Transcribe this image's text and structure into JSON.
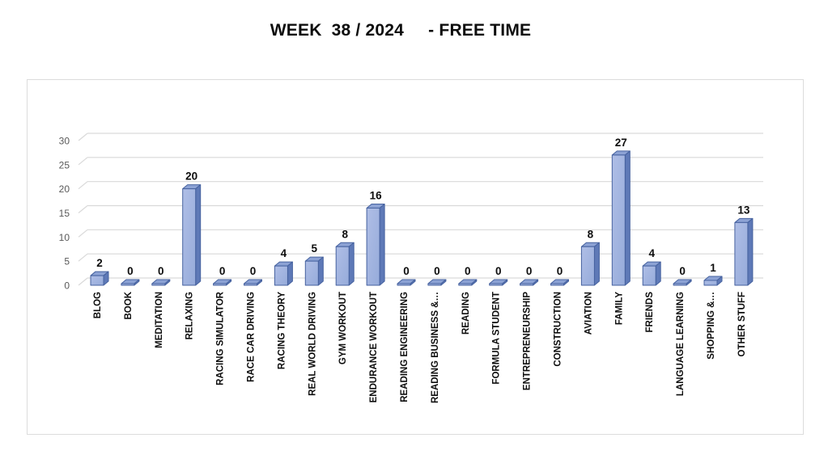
{
  "title": "WEEK  38 / 2024     - FREE TIME",
  "chart_data": {
    "type": "bar",
    "style": "3d-column",
    "title": "WEEK  38 / 2024     - FREE TIME",
    "xlabel": "",
    "ylabel": "",
    "ylim": [
      0,
      30
    ],
    "yticks": [
      0,
      5,
      10,
      15,
      20,
      25,
      30
    ],
    "grid": true,
    "legend": false,
    "categories": [
      "BLOG",
      "BOOK",
      "MEDITATION",
      "RELAXING",
      "RACING SIMULATOR",
      "RACE CAR DRIVING",
      "RACING THEORY",
      "REAL WORLD DRIVING",
      "GYM WORKOUT",
      "ENDURANCE WORKOUT",
      "READING ENGINEERING",
      "READING BUSINESS &…",
      "READING",
      "FORMULA STUDENT",
      "ENTREPRENEURSHIP",
      "CONSTRUCTION",
      "AVIATION",
      "FAMILY",
      "FRIENDS",
      "LANGUAGE LEARNING",
      "SHOPPING &…",
      "OTHER STUFF"
    ],
    "values": [
      2,
      0,
      0,
      20,
      0,
      0,
      4,
      5,
      8,
      16,
      0,
      0,
      0,
      0,
      0,
      0,
      8,
      27,
      4,
      0,
      1,
      13
    ],
    "colors": {
      "bar_front_light": "#AFBEE6",
      "bar_front_dark": "#96ABDA",
      "bar_top": "#8CA2D4",
      "bar_side": "#5E79B7",
      "bar_border": "#46629F",
      "gridline": "#D9D9D9",
      "axis_text": "#595959",
      "label_text": "#0d0d0d",
      "chart_border": "#DCDCDC",
      "background": "#FFFFFF"
    }
  }
}
